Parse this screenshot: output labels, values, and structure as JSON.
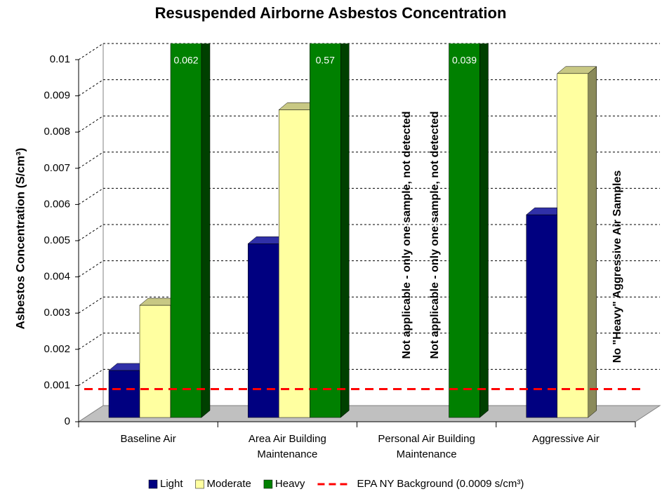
{
  "chart_data": {
    "type": "bar3d",
    "title": "Resuspended Airborne Asbestos Concentration",
    "y_label": "Asbestos Concentration (S/cm³)",
    "categories": [
      "Baseline Air",
      "Area Air Building Maintenance",
      "Personal Air Building Maintenance",
      "Aggressive Air"
    ],
    "series": [
      {
        "name": "Light",
        "color": "#000080",
        "values": [
          0.0013,
          0.0048,
          null,
          0.0056
        ]
      },
      {
        "name": "Moderate",
        "color": "#ffffa0",
        "values": [
          0.0031,
          0.0085,
          null,
          0.0095
        ]
      },
      {
        "name": "Heavy",
        "color": "#008000",
        "values": [
          0.062,
          0.57,
          0.039,
          null
        ]
      }
    ],
    "reference_line": {
      "name": "EPA NY Background (0.0009 s/cm³)",
      "value": 0.0009,
      "color": "#ff0000"
    },
    "annotations": [
      "Not applicable - only one sample, not detected",
      "Not applicable - only one sample, not detected",
      "No \"Heavy\" Aggressive Air Samples"
    ],
    "ylim": [
      0,
      0.01
    ],
    "yticks": [
      0,
      0.001,
      0.002,
      0.003,
      0.004,
      0.005,
      0.006,
      0.007,
      0.008,
      0.009,
      0.01
    ],
    "grid": true
  }
}
